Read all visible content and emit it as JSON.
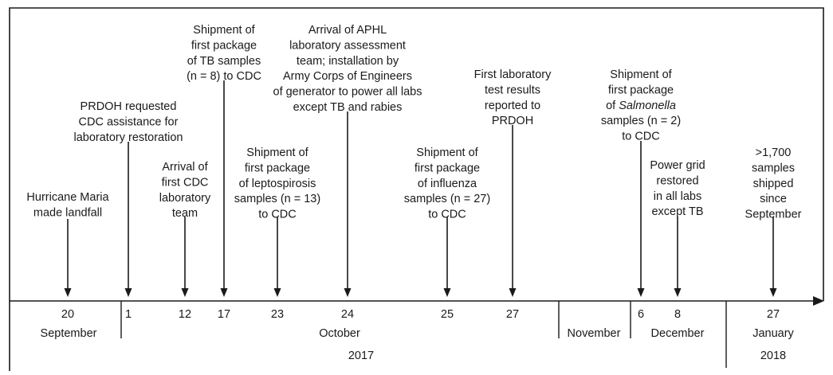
{
  "events": [
    {
      "lines": [
        "Hurricane Maria",
        "made landfall"
      ]
    },
    {
      "lines": [
        "PRDOH requested",
        "CDC assistance for",
        "laboratory restoration"
      ]
    },
    {
      "lines": [
        "Arrival of",
        "first CDC",
        "laboratory",
        "team"
      ]
    },
    {
      "lines": [
        "Shipment of",
        "first package",
        "of TB samples",
        "(n = 8) to CDC"
      ]
    },
    {
      "lines": [
        "Shipment of",
        "first package",
        "of leptospirosis",
        "samples (n = 13)",
        "to CDC"
      ]
    },
    {
      "lines": [
        "Arrival of APHL",
        "laboratory assessment",
        "team; installation by",
        "Army Corps of Engineers",
        "of generator to power all labs",
        "except TB and rabies"
      ]
    },
    {
      "lines": [
        "Shipment of",
        "first package",
        "of influenza",
        "samples (n = 27)",
        "to CDC"
      ]
    },
    {
      "lines": [
        "First laboratory",
        "test results",
        "reported to",
        "PRDOH"
      ]
    },
    {
      "lines": [
        "Shipment of",
        "first package",
        "of Salmonella",
        "samples (n = 2)",
        "to CDC"
      ],
      "italic_word": "Salmonella"
    },
    {
      "lines": [
        "Power grid",
        "restored",
        "in all labs",
        "except TB"
      ]
    },
    {
      "lines": [
        ">1,700",
        "samples",
        "shipped",
        "since",
        "September"
      ]
    }
  ],
  "day_ticks": [
    "20",
    "1",
    "12",
    "17",
    "23",
    "24",
    "25",
    "27",
    "6",
    "8",
    "27"
  ],
  "months": [
    "September",
    "October",
    "November",
    "December",
    "January"
  ],
  "years": [
    "2017",
    "2018"
  ]
}
